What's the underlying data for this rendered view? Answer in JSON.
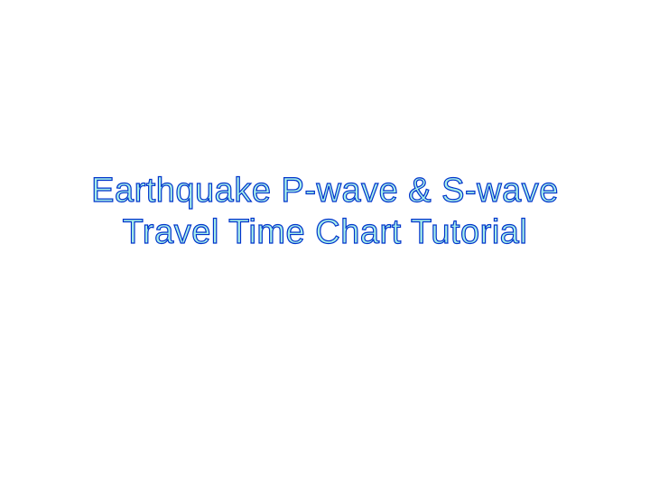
{
  "slide": {
    "title_line1": "Earthquake P-wave & S-wave",
    "title_line2": "Travel Time Chart Tutorial",
    "background_color": "#ffffff",
    "text_fill_color": "#a8f0e8",
    "text_stroke_color": "#0033cc",
    "font_family": "Arial, Helvetica, sans-serif",
    "font_size": 38,
    "font_weight": 400
  }
}
